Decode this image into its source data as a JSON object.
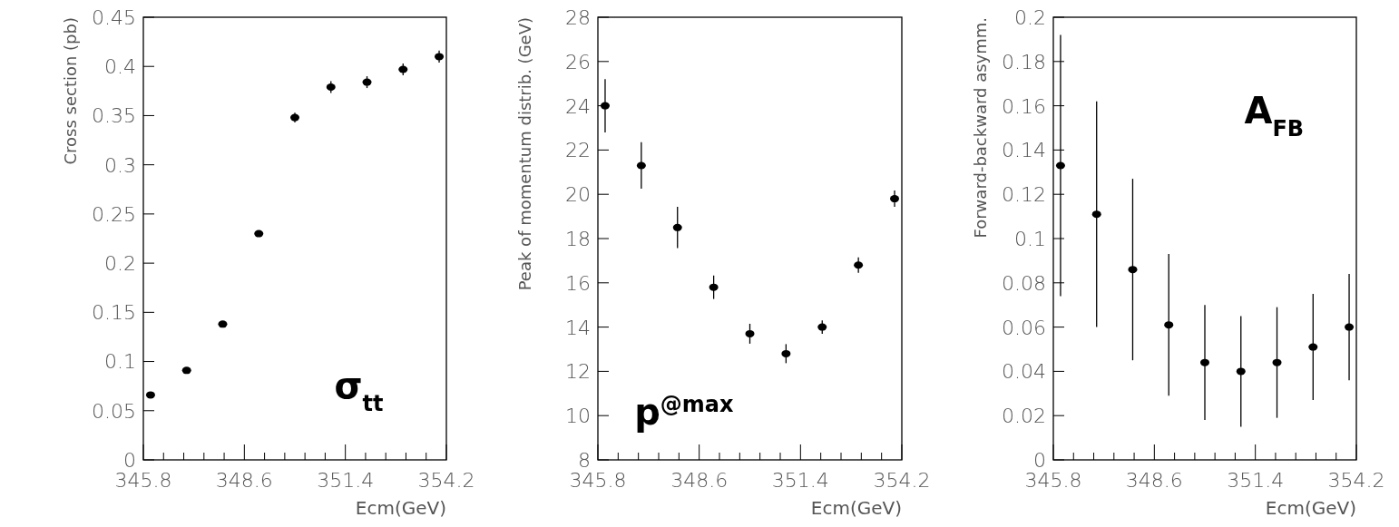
{
  "chart_data": [
    {
      "type": "scatter",
      "ylabel": "Cross section (pb)",
      "xlabel": "Ecm(GeV)",
      "annotations": [
        "σ$_{tt}$"
      ],
      "marker": "circle",
      "xlim": [
        345.8,
        354.2
      ],
      "xticks": [
        345.8,
        {
          "value": 346.36,
          "label": null
        },
        {
          "value": 346.92,
          "label": null
        },
        {
          "value": 347.48,
          "label": null
        },
        {
          "value": 348.04,
          "label": null
        },
        348.6,
        {
          "value": 349.16,
          "label": null
        },
        {
          "value": 349.72,
          "label": null
        },
        {
          "value": 350.28,
          "label": null
        },
        {
          "value": 350.84,
          "label": null
        },
        351.4,
        {
          "value": 351.96,
          "label": null
        },
        {
          "value": 352.52,
          "label": null
        },
        {
          "value": 353.08,
          "label": null
        },
        {
          "value": 353.64,
          "label": null
        },
        354.2
      ],
      "ylim": [
        0,
        0.45
      ],
      "yticks": [
        0,
        0.05,
        0.1,
        0.15,
        0.2,
        0.25,
        0.3,
        0.35,
        0.4,
        0.45
      ],
      "series": [
        {
          "color": "#000000",
          "x": [
            346,
            347,
            348,
            349,
            350,
            351,
            352,
            353,
            354
          ],
          "values": [
            0.066,
            0.091,
            0.138,
            0.23,
            0.348,
            0.379,
            0.384,
            0.397,
            0.41
          ],
          "errors": [
            0.002,
            0.002,
            0.002,
            0.003,
            0.005,
            0.006,
            0.006,
            0.006,
            0.006
          ]
        }
      ]
    },
    {
      "type": "scatter",
      "ylabel": "Peak of momentum distrib. (GeV)",
      "xlabel": "Ecm(GeV)",
      "annotations": [
        "p$^{@max}$"
      ],
      "marker": "circle",
      "xlim": [
        345.8,
        354.2
      ],
      "xticks": [
        345.8,
        {
          "value": 346.36,
          "label": null
        },
        {
          "value": 346.92,
          "label": null
        },
        {
          "value": 347.48,
          "label": null
        },
        {
          "value": 348.04,
          "label": null
        },
        348.6,
        {
          "value": 349.16,
          "label": null
        },
        {
          "value": 349.72,
          "label": null
        },
        {
          "value": 350.28,
          "label": null
        },
        {
          "value": 350.84,
          "label": null
        },
        351.4,
        {
          "value": 351.96,
          "label": null
        },
        {
          "value": 352.52,
          "label": null
        },
        {
          "value": 353.08,
          "label": null
        },
        {
          "value": 353.64,
          "label": null
        },
        354.2
      ],
      "ylim": [
        8,
        28
      ],
      "yticks": [
        8,
        10,
        12,
        14,
        16,
        18,
        20,
        22,
        24,
        26,
        28
      ],
      "series": [
        {
          "color": "#000000",
          "x": [
            346,
            347,
            348,
            349,
            350,
            351,
            352,
            353,
            354
          ],
          "values": [
            24.0,
            21.3,
            18.5,
            15.8,
            13.7,
            12.8,
            14.0,
            16.8,
            19.8
          ],
          "errors": [
            1.2,
            1.05,
            0.93,
            0.53,
            0.45,
            0.43,
            0.3,
            0.35,
            0.37
          ]
        }
      ]
    },
    {
      "type": "scatter",
      "ylabel": "Forward-backward asymm.",
      "xlabel": "Ecm(GeV)",
      "annotations": [
        "A$_{FB}$"
      ],
      "marker": "circle",
      "xlim": [
        345.8,
        354.2
      ],
      "xticks": [
        345.8,
        {
          "value": 346.36,
          "label": null
        },
        {
          "value": 346.92,
          "label": null
        },
        {
          "value": 347.48,
          "label": null
        },
        {
          "value": 348.04,
          "label": null
        },
        348.6,
        {
          "value": 349.16,
          "label": null
        },
        {
          "value": 349.72,
          "label": null
        },
        {
          "value": 350.28,
          "label": null
        },
        {
          "value": 350.84,
          "label": null
        },
        351.4,
        {
          "value": 351.96,
          "label": null
        },
        {
          "value": 352.52,
          "label": null
        },
        {
          "value": 353.08,
          "label": null
        },
        {
          "value": 353.64,
          "label": null
        },
        354.2
      ],
      "ylim": [
        0,
        0.2
      ],
      "yticks": [
        0,
        0.02,
        0.04,
        0.06,
        0.08,
        0.1,
        0.12,
        0.14,
        0.16,
        0.18,
        0.2
      ],
      "series": [
        {
          "color": "#000000",
          "x": [
            346,
            347,
            348,
            349,
            350,
            351,
            352,
            353,
            354
          ],
          "values": [
            0.133,
            0.111,
            0.086,
            0.061,
            0.044,
            0.04,
            0.044,
            0.051,
            0.06
          ],
          "errors": [
            0.059,
            0.051,
            0.041,
            0.032,
            0.026,
            0.025,
            0.025,
            0.024,
            0.024
          ]
        }
      ]
    }
  ]
}
